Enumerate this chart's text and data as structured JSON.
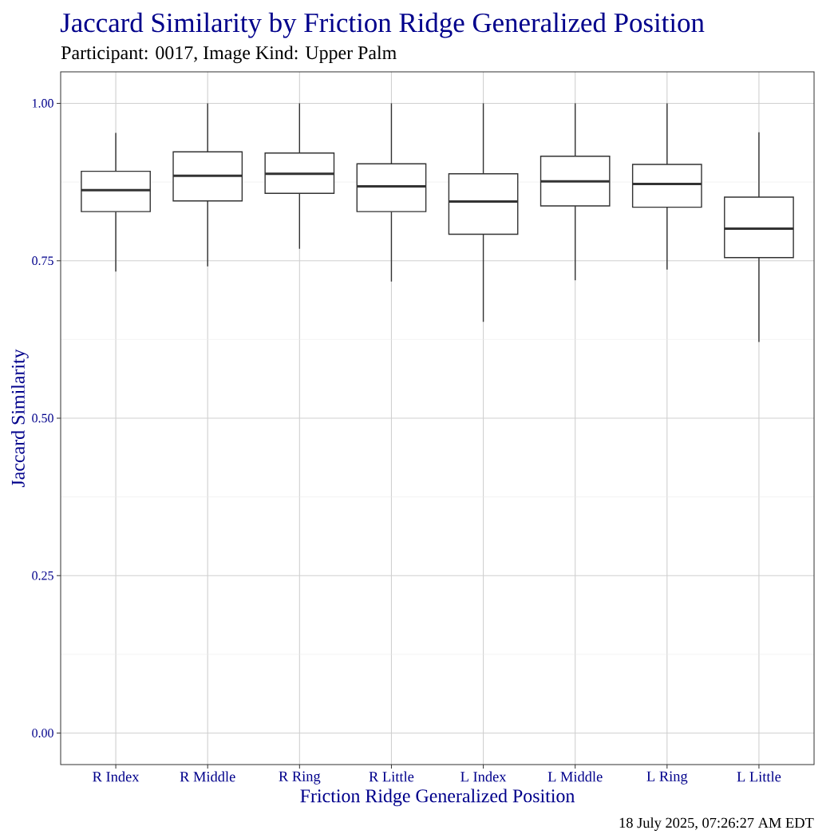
{
  "chart_data": {
    "type": "box",
    "title": "Jaccard Similarity by Friction Ridge Generalized Position",
    "subtitle": "Participant: 0017, Image Kind: Upper Palm",
    "xlabel": "Friction Ridge Generalized Position",
    "ylabel": "Jaccard Similarity",
    "categories": [
      "R Index",
      "R Middle",
      "R Ring",
      "R Little",
      "L Index",
      "L Middle",
      "L Ring",
      "L Little"
    ],
    "boxes": [
      {
        "low": 0.733,
        "q1": 0.828,
        "median": 0.862,
        "q3": 0.892,
        "high": 0.953
      },
      {
        "low": 0.741,
        "q1": 0.845,
        "median": 0.885,
        "q3": 0.923,
        "high": 1.0
      },
      {
        "low": 0.769,
        "q1": 0.857,
        "median": 0.888,
        "q3": 0.921,
        "high": 1.0
      },
      {
        "low": 0.717,
        "q1": 0.828,
        "median": 0.868,
        "q3": 0.904,
        "high": 1.0
      },
      {
        "low": 0.653,
        "q1": 0.792,
        "median": 0.844,
        "q3": 0.888,
        "high": 1.0
      },
      {
        "low": 0.719,
        "q1": 0.837,
        "median": 0.876,
        "q3": 0.916,
        "high": 1.0
      },
      {
        "low": 0.736,
        "q1": 0.835,
        "median": 0.872,
        "q3": 0.903,
        "high": 1.0
      },
      {
        "low": 0.621,
        "q1": 0.755,
        "median": 0.801,
        "q3": 0.851,
        "high": 0.954
      }
    ],
    "color": "#333333",
    "ylim": [
      -0.05,
      1.05
    ],
    "yticks": [
      {
        "value": 0,
        "label": "0.00"
      },
      {
        "value": 0.25,
        "label": "0.25"
      },
      {
        "value": 0.5,
        "label": "0.50"
      },
      {
        "value": 0.75,
        "label": "0.75"
      },
      {
        "value": 1,
        "label": "1.00"
      }
    ],
    "grid": true,
    "annotations": [
      "18 July 2025, 07:26:27 AM EDT"
    ]
  }
}
